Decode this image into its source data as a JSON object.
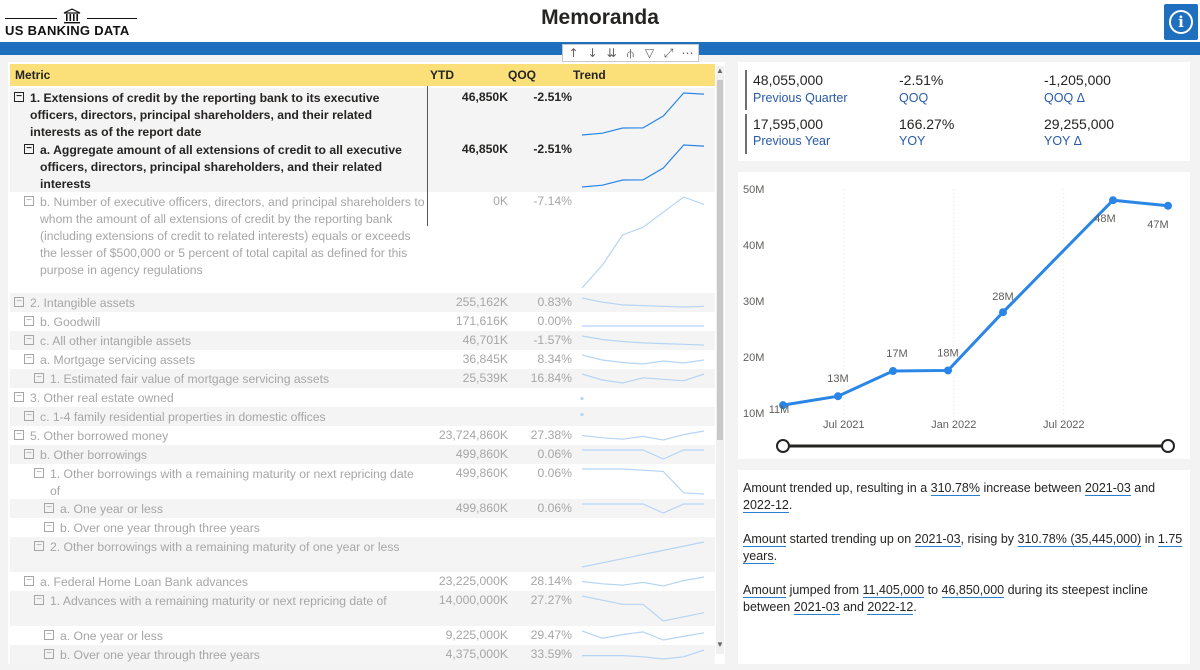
{
  "header": {
    "logo_text": "US BANKING DATA",
    "title": "Memoranda",
    "info_icon": "info-icon"
  },
  "toolbar": {
    "icons": [
      "arrow-up-icon",
      "arrow-down-icon",
      "double-arrow-down-icon",
      "expand-hierarchy-icon",
      "filter-icon",
      "focus-mode-icon",
      "more-options-icon"
    ]
  },
  "matrix": {
    "columns": {
      "metric": "Metric",
      "ytd": "YTD",
      "qoq": "QOQ",
      "trend": "Trend"
    },
    "rows": [
      {
        "metric": "1. Extensions of credit by the reporting bank to its executive officers, directors, principal shareholders, and their related interests as of the report date",
        "ytd": "46,850K",
        "qoq": "-2.51%",
        "trend": [
          11.4,
          13,
          17.5,
          17.6,
          28,
          48,
          47
        ]
      },
      {
        "metric": "a. Aggregate amount of all extensions of credit to all executive officers, directors, principal shareholders, and their related interests",
        "ytd": "46,850K",
        "qoq": "-2.51%",
        "trend": [
          11.4,
          13,
          17.5,
          17.6,
          28,
          48,
          47
        ]
      },
      {
        "metric": "b. Number of executive officers, directors, and principal shareholders to whom the amount of all extensions of credit by the reporting bank (including extensions of credit to related interests) equals or exceeds the lesser of $500,000 or 5 percent of total capital as defined for this purpose in agency regulations",
        "ytd": "0K",
        "qoq": "-7.14%",
        "trend": [
          2,
          5,
          9,
          10,
          12,
          14,
          13
        ]
      },
      {
        "metric": "2. Intangible assets",
        "ytd": "255,162K",
        "qoq": "0.83%",
        "trend": [
          6,
          5.4,
          5,
          4.9,
          4.8,
          4.7,
          4.8
        ]
      },
      {
        "metric": "b. Goodwill",
        "ytd": "171,616K",
        "qoq": "0.00%",
        "trend": [
          5,
          5,
          5,
          5,
          5,
          5,
          5
        ]
      },
      {
        "metric": "c. All other intangible assets",
        "ytd": "46,701K",
        "qoq": "-1.57%",
        "trend": [
          6,
          5.5,
          5.2,
          5,
          4.9,
          4.8,
          4.7
        ]
      },
      {
        "metric": "a. Mortgage servicing assets",
        "ytd": "36,845K",
        "qoq": "8.34%",
        "trend": [
          6,
          5,
          4.5,
          4.2,
          4.8,
          4.4,
          5
        ]
      },
      {
        "metric": "1. Estimated fair value of mortgage servicing assets",
        "ytd": "25,539K",
        "qoq": "16.84%",
        "trend": [
          5,
          4.2,
          3.8,
          4.5,
          4.3,
          4.1,
          5
        ]
      },
      {
        "metric": "3. Other real estate owned",
        "ytd": "",
        "qoq": "",
        "trend": []
      },
      {
        "metric": "c. 1-4 family residential properties in domestic offices",
        "ytd": "",
        "qoq": "",
        "trend": []
      },
      {
        "metric": "5. Other borrowed money",
        "ytd": "23,724,860K",
        "qoq": "27.38%",
        "trend": [
          5,
          4.5,
          4.2,
          4.8,
          4.0,
          5.2,
          6
        ]
      },
      {
        "metric": "b. Other borrowings",
        "ytd": "499,860K",
        "qoq": "0.06%",
        "trend": [
          5,
          5,
          5,
          5,
          4.6,
          5,
          5
        ]
      },
      {
        "metric": "1. Other borrowings with a remaining maturity or next repricing date of",
        "ytd": "499,860K",
        "qoq": "0.06%",
        "trend": [
          6,
          6,
          6,
          5.8,
          5.6,
          2,
          1.8
        ]
      },
      {
        "metric": "a. One year or less",
        "ytd": "499,860K",
        "qoq": "0.06%",
        "trend": [
          5,
          5,
          5,
          5,
          4.6,
          5,
          5
        ]
      },
      {
        "metric": "b. Over one year through three years",
        "ytd": "",
        "qoq": "",
        "trend": []
      },
      {
        "metric": "2. Other borrowings with a remaining maturity of one year or less",
        "ytd": "",
        "qoq": "",
        "trend": [
          1,
          3,
          5
        ]
      },
      {
        "metric": "a. Federal Home Loan Bank advances",
        "ytd": "23,225,000K",
        "qoq": "28.14%",
        "trend": [
          5,
          4.5,
          4.2,
          4.8,
          4.0,
          5.2,
          6
        ]
      },
      {
        "metric": "1. Advances with a remaining maturity or next repricing date of",
        "ytd": "14,000,000K",
        "qoq": "27.27%",
        "trend": [
          6,
          5.5,
          5,
          5,
          3,
          3.5,
          4
        ]
      },
      {
        "metric": "a. One year or less",
        "ytd": "9,225,000K",
        "qoq": "29.47%",
        "trend": [
          5,
          4.2,
          4.6,
          4.9,
          4.0,
          4.4,
          4.8
        ]
      },
      {
        "metric": "b. Over one year through three years",
        "ytd": "4,375,000K",
        "qoq": "33.59%",
        "trend": [
          5,
          5,
          5,
          4.8,
          4.4,
          4.8,
          6
        ]
      }
    ]
  },
  "kpi": {
    "prev_quarter_value": "48,055,000",
    "prev_quarter_label": "Previous Quarter",
    "qoq_value": "-2.51%",
    "qoq_label": "QOQ",
    "qoq_delta_value": "-1,205,000",
    "qoq_delta_label": "QOQ Δ",
    "prev_year_value": "17,595,000",
    "prev_year_label": "Previous Year",
    "yoy_value": "166.27%",
    "yoy_label": "YOY",
    "yoy_delta_value": "29,255,000",
    "yoy_delta_label": "YOY Δ"
  },
  "chart_data": {
    "type": "line",
    "x": [
      "2021-03",
      "2021-06",
      "2021-09",
      "2021-12",
      "2022-03",
      "2022-06",
      "2022-09",
      "2022-12"
    ],
    "series": [
      {
        "values": [
          11.4,
          13,
          17.5,
          17.6,
          28,
          null,
          48,
          47
        ]
      }
    ],
    "data_labels": [
      "11M",
      "13M",
      "17M",
      "18M",
      "28M",
      "",
      "48M",
      "47M"
    ],
    "xticks": [
      "Jul 2021",
      "Jan 2022",
      "Jul 2022"
    ],
    "yticks": [
      "10M",
      "20M",
      "30M",
      "40M",
      "50M"
    ],
    "ylim": [
      10,
      50
    ],
    "color": "#2a86e6"
  },
  "narrative": {
    "p1_a": "Amount trended up, resulting in a ",
    "p1_b": "310.78%",
    "p1_c": " increase between ",
    "p1_d": "2021-03",
    "p1_e": " and ",
    "p1_f": "2022-12",
    "p1_g": ".",
    "p2_a": "Amount",
    "p2_b": " started trending up on ",
    "p2_c": "2021-03",
    "p2_d": ", rising by ",
    "p2_e": "310.78% (35,445,000)",
    "p2_f": " in ",
    "p2_g": "1.75 years",
    "p2_h": ".",
    "p3_a": "Amount",
    "p3_b": " jumped from ",
    "p3_c": "11,405,000",
    "p3_d": " to ",
    "p3_e": "46,850,000",
    "p3_f": " during its steepest incline between ",
    "p3_g": "2021-03",
    "p3_h": " and ",
    "p3_i": "2022-12",
    "p3_j": "."
  }
}
